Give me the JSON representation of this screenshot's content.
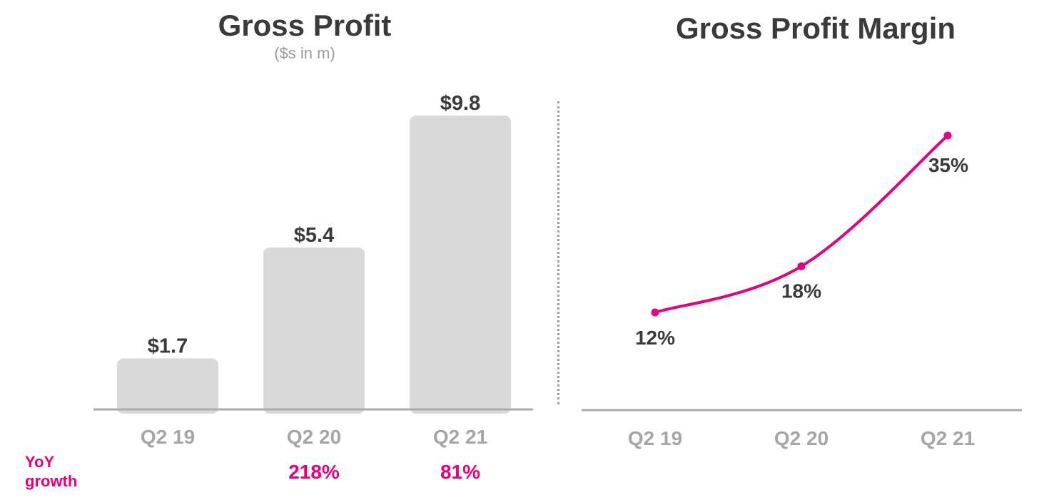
{
  "colors": {
    "bar": "#d9d9d9",
    "axis": "#aaaaaa",
    "line": "#e6007e",
    "label_dark": "#3a3a3a",
    "tick": "#a6a6a6",
    "accent": "#e6007e"
  },
  "yoy": {
    "label_line1": "YoY",
    "label_line2": "growth",
    "values": [
      "",
      "218%",
      "81%"
    ]
  },
  "chart_data": [
    {
      "type": "bar",
      "title": "Gross Profit",
      "subtitle": "($s in m)",
      "categories": [
        "Q2 19",
        "Q2 20",
        "Q2 21"
      ],
      "values": [
        1.7,
        5.4,
        9.8
      ],
      "data_labels": [
        "$1.7",
        "$5.4",
        "$9.8"
      ],
      "ylim": [
        0,
        10
      ],
      "grid": false
    },
    {
      "type": "line",
      "title": "Gross Profit Margin",
      "categories": [
        "Q2 19",
        "Q2 20",
        "Q2 21"
      ],
      "values": [
        12,
        18,
        35
      ],
      "data_labels": [
        "12%",
        "18%",
        "35%"
      ],
      "ylim": [
        0,
        40
      ],
      "grid": false
    }
  ]
}
